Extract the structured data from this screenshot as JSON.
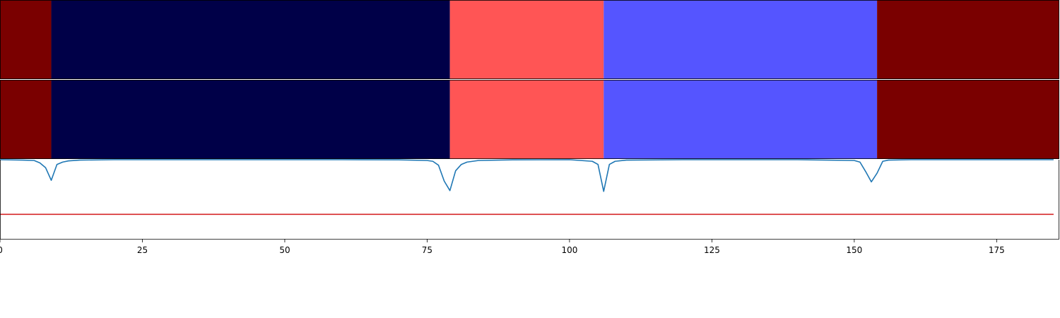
{
  "chart_data": [
    {
      "type": "heatmap",
      "panel": "segments-top",
      "xlim": [
        0,
        186
      ],
      "segments": [
        {
          "start": 0,
          "end": 9,
          "color": "#7a0000"
        },
        {
          "start": 9,
          "end": 79,
          "color": "#000048"
        },
        {
          "start": 79,
          "end": 106,
          "color": "#ff5555"
        },
        {
          "start": 106,
          "end": 154,
          "color": "#5555ff"
        },
        {
          "start": 154,
          "end": 186,
          "color": "#7a0000"
        }
      ]
    },
    {
      "type": "heatmap",
      "panel": "segments-bottom",
      "xlim": [
        0,
        186
      ],
      "segments": [
        {
          "start": 0,
          "end": 9,
          "color": "#7a0000"
        },
        {
          "start": 9,
          "end": 79,
          "color": "#000048"
        },
        {
          "start": 79,
          "end": 106,
          "color": "#ff5555"
        },
        {
          "start": 106,
          "end": 154,
          "color": "#5555ff"
        },
        {
          "start": 154,
          "end": 186,
          "color": "#7a0000"
        }
      ]
    },
    {
      "type": "line",
      "panel": "signal",
      "xlim": [
        0,
        186
      ],
      "ylim": [
        0,
        1
      ],
      "xticks": [
        0,
        25,
        50,
        75,
        100,
        125,
        150,
        175
      ],
      "xtick_labels": [
        "0",
        "25",
        "50",
        "75",
        "100",
        "125",
        "150",
        "175"
      ],
      "threshold": {
        "y": 0.31,
        "color": "#d62728"
      },
      "series": [
        {
          "color": "#1f77b4",
          "x": [
            0,
            4,
            6,
            7,
            8,
            9,
            10,
            11,
            12,
            14,
            20,
            40,
            60,
            70,
            75,
            76,
            77,
            78,
            79,
            80,
            81,
            82,
            84,
            90,
            100,
            104,
            105,
            106,
            107,
            108,
            110,
            120,
            140,
            150,
            151,
            152,
            153,
            154,
            155,
            156,
            160,
            175,
            185
          ],
          "y": [
            1.0,
            0.995,
            0.99,
            0.96,
            0.9,
            0.74,
            0.94,
            0.97,
            0.985,
            0.995,
            1.0,
            1.0,
            1.0,
            0.998,
            0.99,
            0.98,
            0.93,
            0.73,
            0.61,
            0.86,
            0.94,
            0.97,
            0.99,
            0.998,
            1.0,
            0.98,
            0.94,
            0.6,
            0.94,
            0.98,
            0.995,
            1.0,
            1.0,
            0.99,
            0.97,
            0.85,
            0.72,
            0.83,
            0.98,
            0.995,
            1.0,
            1.0,
            1.0
          ]
        }
      ]
    }
  ]
}
